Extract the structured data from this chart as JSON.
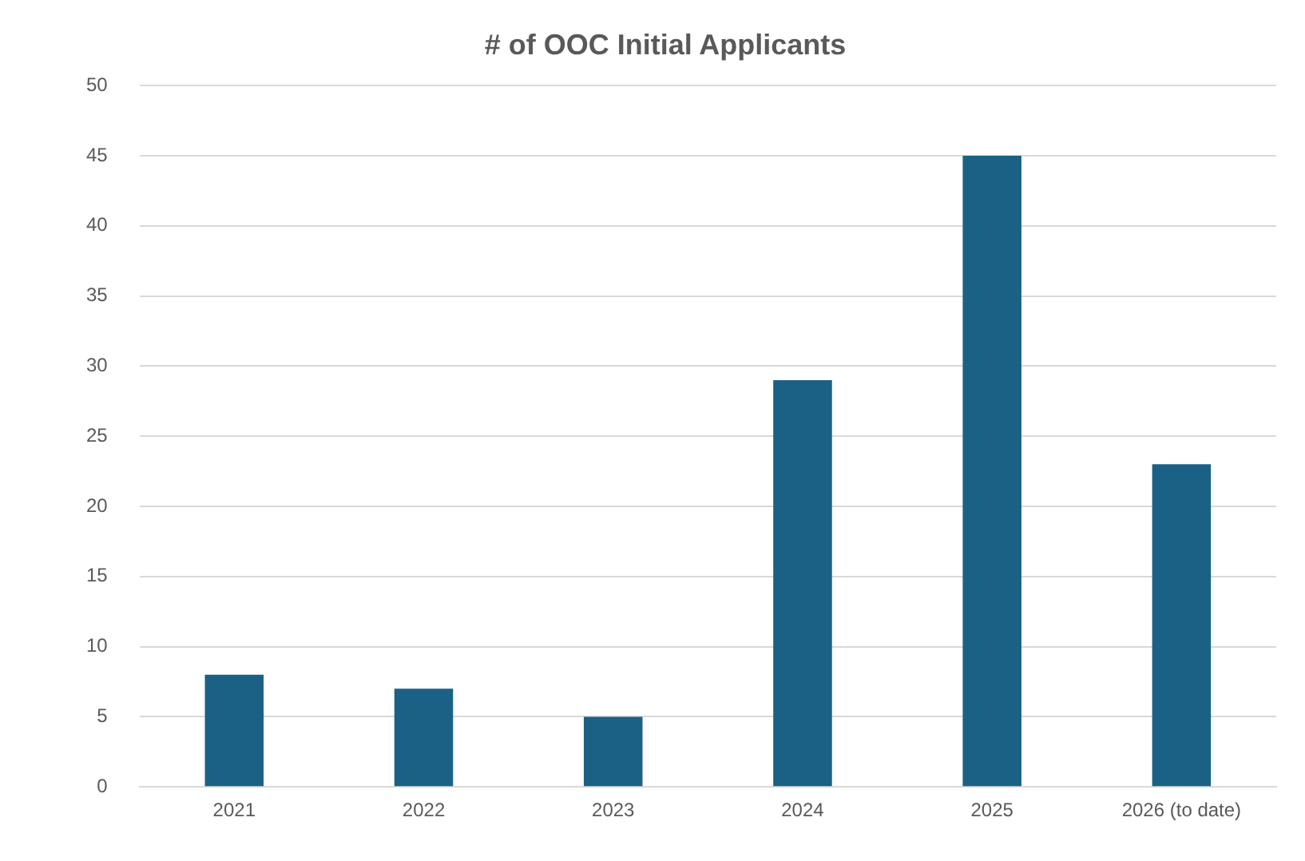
{
  "chart_data": {
    "type": "bar",
    "title": "# of OOC Initial Applicants",
    "categories": [
      "2021",
      "2022",
      "2023",
      "2024",
      "2025",
      "2026 (to date)"
    ],
    "values": [
      8,
      7,
      5,
      29,
      45,
      23
    ],
    "color": "#1b6185",
    "ylim": [
      0,
      50
    ],
    "yticks": [
      0,
      5,
      10,
      15,
      20,
      25,
      30,
      35,
      40,
      45,
      50
    ],
    "grid": "y",
    "legend": false
  }
}
